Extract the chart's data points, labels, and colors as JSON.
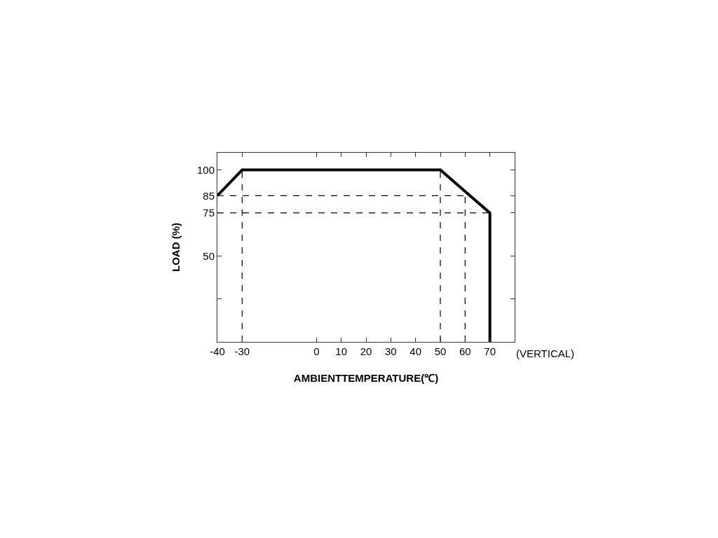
{
  "chart_data": {
    "type": "line",
    "xlabel": "AMBIENTTEMPERATURE(℃)",
    "ylabel": "LOAD (%)",
    "xlim": [
      -40,
      80
    ],
    "xticks": [
      -40,
      -30,
      0,
      10,
      20,
      30,
      40,
      50,
      60,
      70
    ],
    "ylim": [
      0,
      110
    ],
    "yticks": [
      {
        "value": 25,
        "label": null
      },
      50,
      75,
      85,
      100
    ],
    "series": [
      {
        "color": "#000000",
        "x": [
          -40,
          -30,
          50,
          70,
          70
        ],
        "values": [
          85,
          100,
          100,
          75,
          0
        ]
      },
      {
        "color": "#000000",
        "line_style": "dashed",
        "x": [
          -30,
          -30
        ],
        "values": [
          0,
          100
        ]
      },
      {
        "color": "#000000",
        "line_style": "dashed",
        "x": [
          50,
          50
        ],
        "values": [
          0,
          100
        ]
      },
      {
        "color": "#000000",
        "line_style": "dashed",
        "x": [
          60,
          60
        ],
        "values": [
          0,
          85
        ]
      },
      {
        "color": "#000000",
        "line_style": "dashed",
        "x": [
          -40,
          60
        ],
        "values": [
          85,
          85
        ]
      },
      {
        "color": "#000000",
        "line_style": "dashed",
        "x": [
          -40,
          70
        ],
        "values": [
          75,
          75
        ]
      }
    ],
    "annotations": [
      "(VERTICAL)"
    ]
  }
}
